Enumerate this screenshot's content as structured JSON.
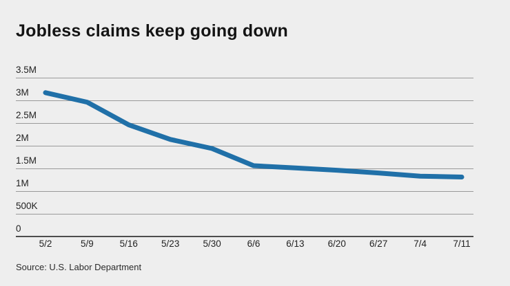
{
  "header": {
    "title": "Jobless claims keep going down"
  },
  "footer": {
    "source": "Source: U.S. Labor Department"
  },
  "colors": {
    "background": "#eeeeee",
    "line": "#2070a8",
    "gridline": "#999999",
    "baseline": "#4d4d4d",
    "title_text": "#141414",
    "tick_text": "#222222",
    "source_text": "#2b2b2b"
  },
  "chart_data": {
    "type": "line",
    "title": "Jobless claims keep going down",
    "categories": [
      "5/2",
      "5/9",
      "5/16",
      "5/23",
      "5/30",
      "6/6",
      "6/13",
      "6/20",
      "6/27",
      "7/4",
      "7/11"
    ],
    "values": [
      3170000,
      2960000,
      2460000,
      2140000,
      1940000,
      1560000,
      1510000,
      1460000,
      1400000,
      1330000,
      1310000
    ],
    "y_ticks": [
      {
        "label": "0",
        "value": 0
      },
      {
        "label": "500K",
        "value": 500000
      },
      {
        "label": "1M",
        "value": 1000000
      },
      {
        "label": "1.5M",
        "value": 1500000
      },
      {
        "label": "2M",
        "value": 2000000
      },
      {
        "label": "2.5M",
        "value": 2500000
      },
      {
        "label": "3M",
        "value": 3000000
      },
      {
        "label": "3.5M",
        "value": 3500000
      }
    ],
    "xlabel": "",
    "ylabel": "",
    "ylim": [
      0,
      3500000
    ],
    "grid": true,
    "legend": false,
    "line_color": "#2070a8",
    "source": "Source: U.S. Labor Department"
  }
}
